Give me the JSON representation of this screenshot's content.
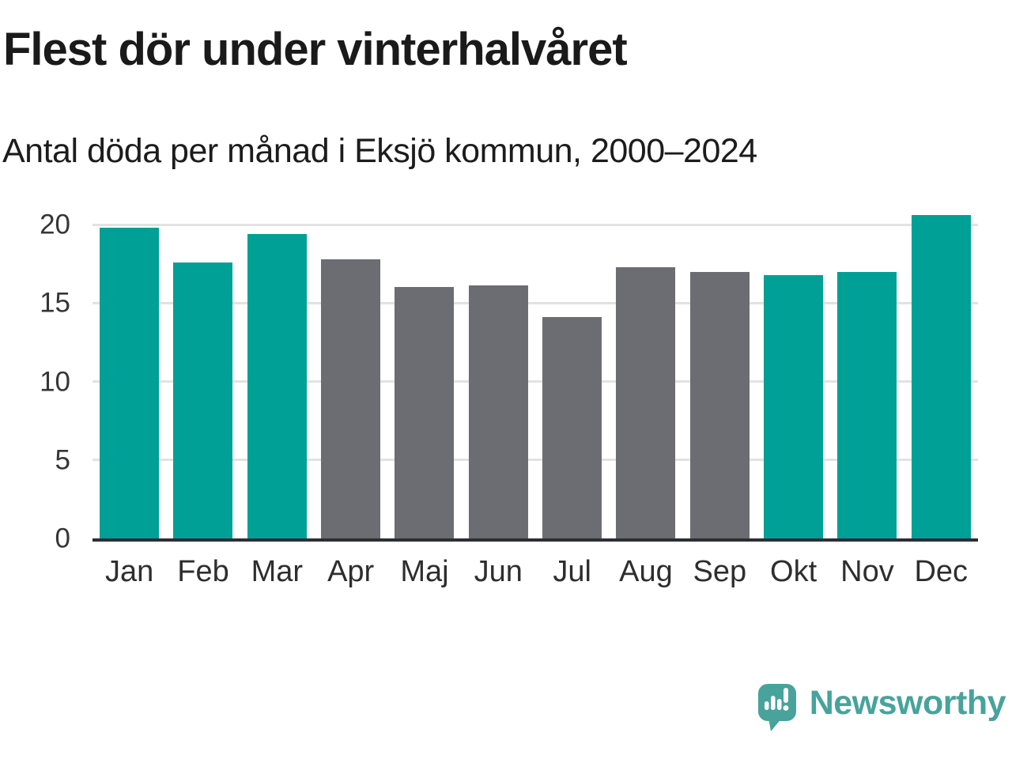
{
  "title": "Flest dör under vinterhalvåret",
  "subtitle": "Antal döda per månad i Eksjö kommun, 2000–2024",
  "branding": {
    "logo_text": "Newsworthy",
    "logo_icon": "newsworthy-speech-bubble-barchart-icon",
    "logo_color": "#47a39b"
  },
  "colors": {
    "winter_bar": "#00a096",
    "summer_bar": "#6c6c73",
    "gridline": "#e2e2e2",
    "axis": "#2e2e35",
    "title_text": "#1a1a1a",
    "tick_text": "#363636",
    "background": "#ffffff"
  },
  "chart_data": {
    "type": "bar",
    "title": "Flest dör under vinterhalvåret",
    "subtitle": "Antal döda per månad i Eksjö kommun, 2000–2024",
    "categories": [
      "Jan",
      "Feb",
      "Mar",
      "Apr",
      "Maj",
      "Jun",
      "Jul",
      "Aug",
      "Sep",
      "Okt",
      "Nov",
      "Dec"
    ],
    "values": [
      19.8,
      17.6,
      19.4,
      17.8,
      16.0,
      16.1,
      14.1,
      17.3,
      17.0,
      16.8,
      17.0,
      20.6
    ],
    "bar_color_keys": [
      "winter_bar",
      "winter_bar",
      "winter_bar",
      "summer_bar",
      "summer_bar",
      "summer_bar",
      "summer_bar",
      "summer_bar",
      "summer_bar",
      "winter_bar",
      "winter_bar",
      "winter_bar"
    ],
    "xlabel": "",
    "ylabel": "",
    "yticks": [
      0,
      5,
      10,
      15,
      20
    ],
    "ylim": [
      0,
      21.1
    ],
    "grid": "horizontal",
    "legend": "none"
  }
}
